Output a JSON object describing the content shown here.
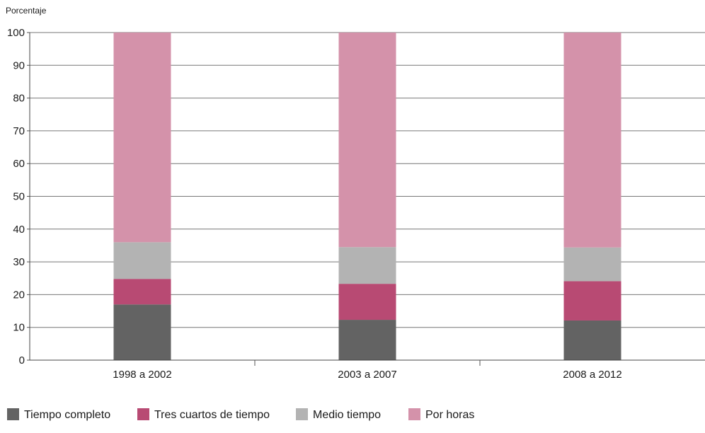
{
  "chart_data": {
    "type": "bar",
    "stacked": true,
    "title": "",
    "xlabel": "",
    "ylabel": "Porcentaje",
    "ylim": [
      0,
      100
    ],
    "yticks": [
      0,
      10,
      20,
      30,
      40,
      50,
      60,
      70,
      80,
      90,
      100
    ],
    "grid": true,
    "legend_position": "bottom-left",
    "categories": [
      "1998 a 2002",
      "2003 a 2007",
      "2008 a 2012"
    ],
    "series": [
      {
        "name": "Tiempo completo",
        "color": "#636363",
        "values": [
          17,
          12.3,
          12.1
        ]
      },
      {
        "name": "Tres cuartos de tiempo",
        "color": "#b84a73",
        "values": [
          7.8,
          11,
          12
        ]
      },
      {
        "name": "Medio tiempo",
        "color": "#b3b3b3",
        "values": [
          11.2,
          11.2,
          10.3
        ]
      },
      {
        "name": "Por horas",
        "color": "#d492aa",
        "values": [
          64,
          65.5,
          65.6
        ]
      }
    ]
  }
}
